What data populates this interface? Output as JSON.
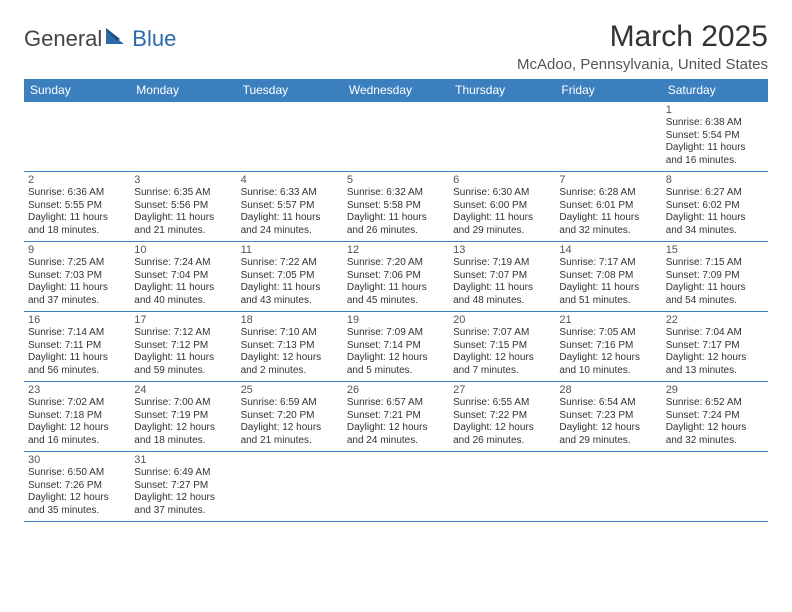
{
  "logo": {
    "part1": "General",
    "part2": "Blue"
  },
  "title": "March 2025",
  "location": "McAdoo, Pennsylvania, United States",
  "colors": {
    "header_bg": "#3b7fbf",
    "header_text": "#ffffff",
    "border": "#3b7fbf",
    "daynum": "#555555",
    "body_text": "#333333"
  },
  "weekdays": [
    "Sunday",
    "Monday",
    "Tuesday",
    "Wednesday",
    "Thursday",
    "Friday",
    "Saturday"
  ],
  "weeks": [
    [
      null,
      null,
      null,
      null,
      null,
      null,
      {
        "n": "1",
        "sr": "Sunrise: 6:38 AM",
        "ss": "Sunset: 5:54 PM",
        "dl": "Daylight: 11 hours and 16 minutes."
      }
    ],
    [
      {
        "n": "2",
        "sr": "Sunrise: 6:36 AM",
        "ss": "Sunset: 5:55 PM",
        "dl": "Daylight: 11 hours and 18 minutes."
      },
      {
        "n": "3",
        "sr": "Sunrise: 6:35 AM",
        "ss": "Sunset: 5:56 PM",
        "dl": "Daylight: 11 hours and 21 minutes."
      },
      {
        "n": "4",
        "sr": "Sunrise: 6:33 AM",
        "ss": "Sunset: 5:57 PM",
        "dl": "Daylight: 11 hours and 24 minutes."
      },
      {
        "n": "5",
        "sr": "Sunrise: 6:32 AM",
        "ss": "Sunset: 5:58 PM",
        "dl": "Daylight: 11 hours and 26 minutes."
      },
      {
        "n": "6",
        "sr": "Sunrise: 6:30 AM",
        "ss": "Sunset: 6:00 PM",
        "dl": "Daylight: 11 hours and 29 minutes."
      },
      {
        "n": "7",
        "sr": "Sunrise: 6:28 AM",
        "ss": "Sunset: 6:01 PM",
        "dl": "Daylight: 11 hours and 32 minutes."
      },
      {
        "n": "8",
        "sr": "Sunrise: 6:27 AM",
        "ss": "Sunset: 6:02 PM",
        "dl": "Daylight: 11 hours and 34 minutes."
      }
    ],
    [
      {
        "n": "9",
        "sr": "Sunrise: 7:25 AM",
        "ss": "Sunset: 7:03 PM",
        "dl": "Daylight: 11 hours and 37 minutes."
      },
      {
        "n": "10",
        "sr": "Sunrise: 7:24 AM",
        "ss": "Sunset: 7:04 PM",
        "dl": "Daylight: 11 hours and 40 minutes."
      },
      {
        "n": "11",
        "sr": "Sunrise: 7:22 AM",
        "ss": "Sunset: 7:05 PM",
        "dl": "Daylight: 11 hours and 43 minutes."
      },
      {
        "n": "12",
        "sr": "Sunrise: 7:20 AM",
        "ss": "Sunset: 7:06 PM",
        "dl": "Daylight: 11 hours and 45 minutes."
      },
      {
        "n": "13",
        "sr": "Sunrise: 7:19 AM",
        "ss": "Sunset: 7:07 PM",
        "dl": "Daylight: 11 hours and 48 minutes."
      },
      {
        "n": "14",
        "sr": "Sunrise: 7:17 AM",
        "ss": "Sunset: 7:08 PM",
        "dl": "Daylight: 11 hours and 51 minutes."
      },
      {
        "n": "15",
        "sr": "Sunrise: 7:15 AM",
        "ss": "Sunset: 7:09 PM",
        "dl": "Daylight: 11 hours and 54 minutes."
      }
    ],
    [
      {
        "n": "16",
        "sr": "Sunrise: 7:14 AM",
        "ss": "Sunset: 7:11 PM",
        "dl": "Daylight: 11 hours and 56 minutes."
      },
      {
        "n": "17",
        "sr": "Sunrise: 7:12 AM",
        "ss": "Sunset: 7:12 PM",
        "dl": "Daylight: 11 hours and 59 minutes."
      },
      {
        "n": "18",
        "sr": "Sunrise: 7:10 AM",
        "ss": "Sunset: 7:13 PM",
        "dl": "Daylight: 12 hours and 2 minutes."
      },
      {
        "n": "19",
        "sr": "Sunrise: 7:09 AM",
        "ss": "Sunset: 7:14 PM",
        "dl": "Daylight: 12 hours and 5 minutes."
      },
      {
        "n": "20",
        "sr": "Sunrise: 7:07 AM",
        "ss": "Sunset: 7:15 PM",
        "dl": "Daylight: 12 hours and 7 minutes."
      },
      {
        "n": "21",
        "sr": "Sunrise: 7:05 AM",
        "ss": "Sunset: 7:16 PM",
        "dl": "Daylight: 12 hours and 10 minutes."
      },
      {
        "n": "22",
        "sr": "Sunrise: 7:04 AM",
        "ss": "Sunset: 7:17 PM",
        "dl": "Daylight: 12 hours and 13 minutes."
      }
    ],
    [
      {
        "n": "23",
        "sr": "Sunrise: 7:02 AM",
        "ss": "Sunset: 7:18 PM",
        "dl": "Daylight: 12 hours and 16 minutes."
      },
      {
        "n": "24",
        "sr": "Sunrise: 7:00 AM",
        "ss": "Sunset: 7:19 PM",
        "dl": "Daylight: 12 hours and 18 minutes."
      },
      {
        "n": "25",
        "sr": "Sunrise: 6:59 AM",
        "ss": "Sunset: 7:20 PM",
        "dl": "Daylight: 12 hours and 21 minutes."
      },
      {
        "n": "26",
        "sr": "Sunrise: 6:57 AM",
        "ss": "Sunset: 7:21 PM",
        "dl": "Daylight: 12 hours and 24 minutes."
      },
      {
        "n": "27",
        "sr": "Sunrise: 6:55 AM",
        "ss": "Sunset: 7:22 PM",
        "dl": "Daylight: 12 hours and 26 minutes."
      },
      {
        "n": "28",
        "sr": "Sunrise: 6:54 AM",
        "ss": "Sunset: 7:23 PM",
        "dl": "Daylight: 12 hours and 29 minutes."
      },
      {
        "n": "29",
        "sr": "Sunrise: 6:52 AM",
        "ss": "Sunset: 7:24 PM",
        "dl": "Daylight: 12 hours and 32 minutes."
      }
    ],
    [
      {
        "n": "30",
        "sr": "Sunrise: 6:50 AM",
        "ss": "Sunset: 7:26 PM",
        "dl": "Daylight: 12 hours and 35 minutes."
      },
      {
        "n": "31",
        "sr": "Sunrise: 6:49 AM",
        "ss": "Sunset: 7:27 PM",
        "dl": "Daylight: 12 hours and 37 minutes."
      },
      null,
      null,
      null,
      null,
      null
    ]
  ]
}
